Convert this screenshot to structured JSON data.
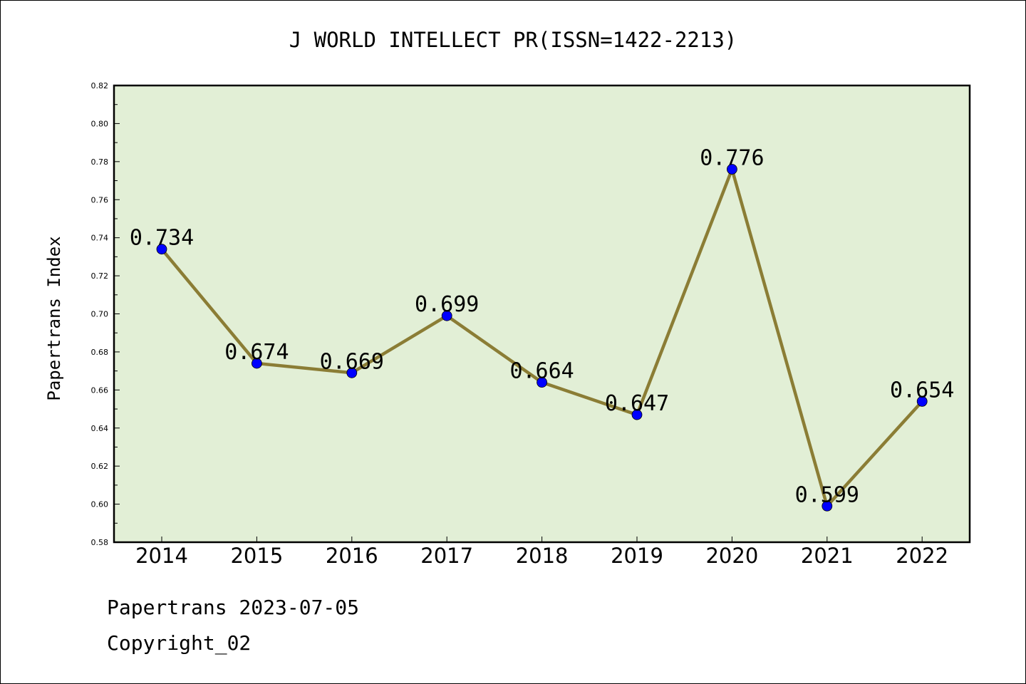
{
  "chart_data": {
    "type": "line",
    "title": "J WORLD INTELLECT PR(ISSN=1422-2213)",
    "xlabel": "",
    "ylabel": "Papertrans Index",
    "categories": [
      "2014",
      "2015",
      "2016",
      "2017",
      "2018",
      "2019",
      "2020",
      "2021",
      "2022"
    ],
    "series": [
      {
        "values": [
          0.734,
          0.674,
          0.669,
          0.699,
          0.664,
          0.647,
          0.776,
          0.599,
          0.654
        ],
        "labels": [
          "0.734",
          "0.674",
          "0.669",
          "0.699",
          "0.664",
          "0.647",
          "0.776",
          "0.599",
          "0.654"
        ]
      }
    ],
    "ylim": [
      0.58,
      0.82
    ],
    "yticks": [
      "0.58",
      "0.60",
      "0.62",
      "0.64",
      "0.66",
      "0.68",
      "0.70",
      "0.72",
      "0.74",
      "0.76",
      "0.78",
      "0.80",
      "0.82"
    ],
    "grid": false,
    "colors": {
      "plot_background": "#e2efd6",
      "line": "#8b7d35",
      "marker": "#0000ff"
    }
  },
  "footer": {
    "line1": "Papertrans 2023-07-05",
    "line2": "Copyright_02"
  }
}
